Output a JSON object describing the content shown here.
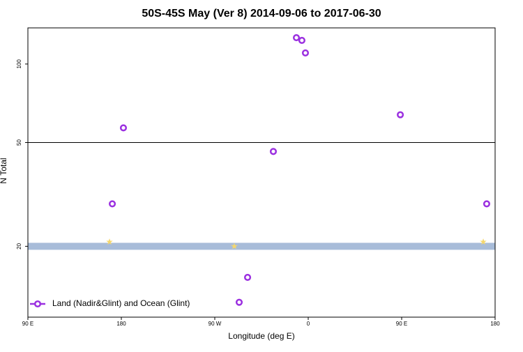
{
  "chart_data": {
    "type": "scatter",
    "title": "50S-45S May (Ver 8)   2014-09-06 to 2017-06-30",
    "x_label": "Longitude (deg E)",
    "y_label": "N Total",
    "xlim": [
      90,
      540
    ],
    "ylim": [
      10.7,
      137.6
    ],
    "log_y": true,
    "xticks": [
      {
        "value": 90,
        "label": "90 E"
      },
      180,
      {
        "value": 270,
        "label": "90 W"
      },
      {
        "value": 360,
        "label": "0"
      },
      {
        "value": 450,
        "label": "90 E"
      },
      {
        "value": 540,
        "label": "180"
      }
    ],
    "yticks": [
      20,
      50,
      100
    ],
    "hlines": [
      50
    ],
    "band": {
      "value": 20,
      "color": "#a8bcd9"
    },
    "series": [
      {
        "name": "Land (Nadir&Glint) and Ocean (Glint)",
        "color": "#9b30e0",
        "x": [
          348.6,
          353.9,
          357.3,
          448.7,
          182.0,
          326.4,
          171.3,
          531.9,
          301.6,
          293.5
        ],
        "values": [
          126.2,
          123.2,
          110.3,
          63.9,
          56.9,
          46.2,
          29.1,
          29.1,
          15.2,
          12.2
        ]
      }
    ],
    "stars": {
      "color": "#f5d76e",
      "x": [
        168.6,
        288.8,
        528.6
      ],
      "values": [
        20.8,
        20,
        20.8
      ]
    },
    "legend": "bottom-left"
  }
}
